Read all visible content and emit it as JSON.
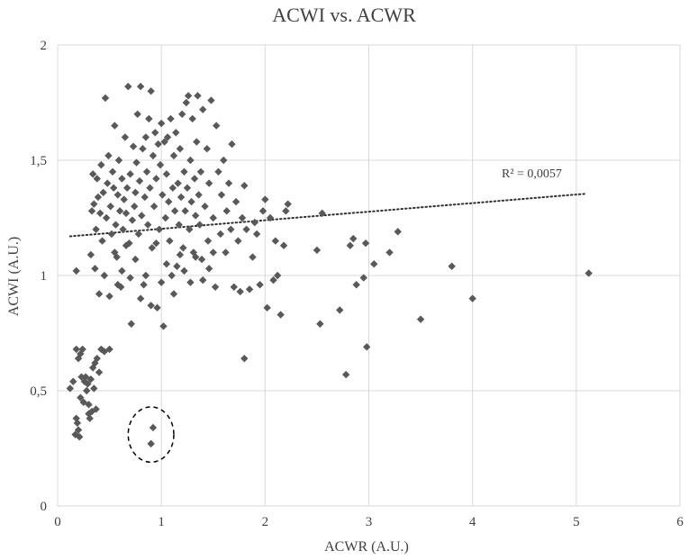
{
  "chart_data": {
    "type": "scatter",
    "title": "ACWI vs. ACWR",
    "xlabel": "ACWR (A.U.)",
    "ylabel": "ACWI (A.U.)",
    "xlim": [
      0,
      6
    ],
    "ylim": [
      0,
      2
    ],
    "x_ticks": [
      0,
      1,
      2,
      3,
      4,
      5,
      6
    ],
    "x_tick_labels": [
      "0",
      "1",
      "2",
      "3",
      "4",
      "5",
      "6"
    ],
    "y_ticks": [
      0,
      0.5,
      1,
      1.5,
      2
    ],
    "y_tick_labels": [
      "0",
      "0,5",
      "1",
      "1,5",
      "2"
    ],
    "grid": true,
    "legend": "none",
    "marker": "diamond",
    "marker_color": "#595959",
    "trendline": {
      "type": "linear",
      "x_range": [
        0.12,
        5.1
      ],
      "y_start": 1.17,
      "y_end": 1.355,
      "style": "dotted",
      "color": "#303030",
      "label": "R² = 0,0057"
    },
    "highlight_ellipse": {
      "center": [
        0.9,
        0.31
      ],
      "radius_x": 0.22,
      "radius_y": 0.12,
      "style": "dashed"
    },
    "points": [
      [
        0.12,
        0.51
      ],
      [
        0.15,
        0.54
      ],
      [
        0.17,
        0.31
      ],
      [
        0.18,
        0.68
      ],
      [
        0.19,
        0.36
      ],
      [
        0.2,
        0.64
      ],
      [
        0.21,
        0.3
      ],
      [
        0.22,
        0.66
      ],
      [
        0.24,
        0.68
      ],
      [
        0.25,
        0.45
      ],
      [
        0.26,
        0.54
      ],
      [
        0.27,
        0.56
      ],
      [
        0.28,
        0.5
      ],
      [
        0.29,
        0.53
      ],
      [
        0.3,
        0.44
      ],
      [
        0.31,
        0.38
      ],
      [
        0.32,
        0.55
      ],
      [
        0.33,
        0.41
      ],
      [
        0.34,
        0.6
      ],
      [
        0.35,
        0.51
      ],
      [
        0.36,
        0.62
      ],
      [
        0.37,
        0.42
      ],
      [
        0.38,
        0.64
      ],
      [
        0.4,
        0.58
      ],
      [
        0.42,
        0.68
      ],
      [
        0.45,
        0.67
      ],
      [
        0.5,
        0.68
      ],
      [
        0.18,
        0.38
      ],
      [
        0.2,
        0.33
      ],
      [
        0.22,
        0.47
      ],
      [
        0.23,
        0.56
      ],
      [
        0.3,
        0.4
      ],
      [
        0.18,
        1.02
      ],
      [
        0.32,
        1.09
      ],
      [
        0.33,
        1.28
      ],
      [
        0.34,
        1.44
      ],
      [
        0.35,
        1.31
      ],
      [
        0.36,
        1.03
      ],
      [
        0.37,
        1.2
      ],
      [
        0.38,
        1.42
      ],
      [
        0.39,
        1.34
      ],
      [
        0.4,
        0.92
      ],
      [
        0.41,
        1.27
      ],
      [
        0.42,
        1.48
      ],
      [
        0.43,
        1.15
      ],
      [
        0.44,
        1.36
      ],
      [
        0.45,
        1.0
      ],
      [
        0.46,
        1.77
      ],
      [
        0.47,
        1.25
      ],
      [
        0.48,
        1.4
      ],
      [
        0.49,
        1.52
      ],
      [
        0.5,
        0.91
      ],
      [
        0.51,
        1.3
      ],
      [
        0.52,
        1.18
      ],
      [
        0.53,
        1.45
      ],
      [
        0.54,
        1.38
      ],
      [
        0.55,
        1.65
      ],
      [
        0.56,
        1.22
      ],
      [
        0.57,
        1.08
      ],
      [
        0.58,
        1.35
      ],
      [
        0.59,
        1.5
      ],
      [
        0.6,
        1.28
      ],
      [
        0.61,
        0.95
      ],
      [
        0.62,
        1.42
      ],
      [
        0.63,
        1.2
      ],
      [
        0.64,
        1.33
      ],
      [
        0.65,
        1.6
      ],
      [
        0.66,
        1.27
      ],
      [
        0.67,
        1.38
      ],
      [
        0.68,
        1.82
      ],
      [
        0.69,
        1.14
      ],
      [
        0.7,
        1.44
      ],
      [
        0.71,
        0.79
      ],
      [
        0.72,
        1.24
      ],
      [
        0.73,
        1.56
      ],
      [
        0.74,
        1.3
      ],
      [
        0.75,
        1.36
      ],
      [
        0.76,
        1.49
      ],
      [
        0.77,
        1.7
      ],
      [
        0.78,
        1.18
      ],
      [
        0.79,
        1.41
      ],
      [
        0.8,
        1.82
      ],
      [
        0.81,
        1.26
      ],
      [
        0.82,
        1.55
      ],
      [
        0.83,
        0.96
      ],
      [
        0.84,
        1.34
      ],
      [
        0.85,
        1.6
      ],
      [
        0.86,
        1.45
      ],
      [
        0.87,
        1.22
      ],
      [
        0.88,
        1.68
      ],
      [
        0.89,
        1.38
      ],
      [
        0.9,
        1.8
      ],
      [
        0.91,
        1.12
      ],
      [
        0.92,
        1.52
      ],
      [
        0.93,
        1.3
      ],
      [
        0.94,
        1.62
      ],
      [
        0.95,
        1.42
      ],
      [
        0.96,
        0.86
      ],
      [
        0.97,
        1.57
      ],
      [
        0.98,
        1.2
      ],
      [
        0.99,
        1.48
      ],
      [
        1.0,
        1.66
      ],
      [
        1.01,
        1.35
      ],
      [
        1.02,
        0.78
      ],
      [
        1.03,
        1.58
      ],
      [
        1.04,
        1.25
      ],
      [
        1.05,
        1.44
      ],
      [
        1.06,
        1.6
      ],
      [
        1.07,
        1.32
      ],
      [
        1.08,
        1.15
      ],
      [
        1.09,
        1.68
      ],
      [
        1.1,
        1.0
      ],
      [
        1.11,
        1.38
      ],
      [
        1.12,
        1.52
      ],
      [
        1.13,
        1.28
      ],
      [
        1.14,
        1.62
      ],
      [
        1.15,
        1.04
      ],
      [
        1.16,
        1.4
      ],
      [
        1.17,
        1.22
      ],
      [
        1.18,
        1.55
      ],
      [
        1.19,
        1.34
      ],
      [
        1.2,
        1.7
      ],
      [
        1.21,
        1.12
      ],
      [
        1.22,
        1.45
      ],
      [
        1.23,
        1.28
      ],
      [
        1.24,
        1.75
      ],
      [
        1.25,
        1.38
      ],
      [
        1.26,
        1.78
      ],
      [
        1.27,
        1.2
      ],
      [
        1.28,
        1.5
      ],
      [
        1.29,
        1.32
      ],
      [
        1.3,
        1.68
      ],
      [
        1.31,
        1.1
      ],
      [
        1.32,
        1.42
      ],
      [
        1.33,
        1.26
      ],
      [
        1.34,
        1.58
      ],
      [
        1.35,
        1.78
      ],
      [
        1.36,
        1.35
      ],
      [
        1.37,
        1.22
      ],
      [
        1.38,
        1.45
      ],
      [
        1.39,
        1.07
      ],
      [
        1.4,
        1.72
      ],
      [
        1.42,
        1.3
      ],
      [
        1.44,
        1.55
      ],
      [
        1.45,
        1.15
      ],
      [
        1.46,
        1.4
      ],
      [
        1.48,
        1.76
      ],
      [
        1.5,
        1.25
      ],
      [
        1.52,
        0.95
      ],
      [
        1.53,
        1.65
      ],
      [
        1.55,
        1.45
      ],
      [
        1.57,
        1.18
      ],
      [
        1.58,
        1.35
      ],
      [
        1.6,
        1.5
      ],
      [
        1.62,
        1.1
      ],
      [
        1.63,
        1.28
      ],
      [
        1.65,
        1.4
      ],
      [
        1.67,
        1.2
      ],
      [
        1.68,
        1.57
      ],
      [
        1.7,
        0.95
      ],
      [
        1.72,
        1.32
      ],
      [
        1.74,
        1.15
      ],
      [
        1.76,
        0.93
      ],
      [
        1.78,
        1.25
      ],
      [
        1.8,
        1.39
      ],
      [
        1.82,
        1.2
      ],
      [
        1.85,
        0.94
      ],
      [
        1.88,
        1.08
      ],
      [
        1.9,
        1.23
      ],
      [
        1.92,
        1.18
      ],
      [
        1.95,
        0.96
      ],
      [
        1.98,
        1.28
      ],
      [
        2.0,
        1.33
      ],
      [
        2.02,
        0.86
      ],
      [
        2.05,
        1.25
      ],
      [
        2.08,
        0.98
      ],
      [
        2.1,
        1.15
      ],
      [
        2.12,
        1.0
      ],
      [
        2.15,
        0.83
      ],
      [
        2.18,
        1.13
      ],
      [
        2.2,
        1.28
      ],
      [
        2.22,
        1.31
      ],
      [
        0.55,
        1.1
      ],
      [
        0.58,
        0.96
      ],
      [
        0.62,
        1.02
      ],
      [
        0.66,
        1.13
      ],
      [
        0.7,
        0.99
      ],
      [
        0.75,
        1.07
      ],
      [
        0.8,
        0.9
      ],
      [
        0.85,
        1.0
      ],
      [
        0.9,
        0.87
      ],
      [
        0.95,
        1.14
      ],
      [
        1.0,
        0.97
      ],
      [
        1.05,
        1.05
      ],
      [
        1.12,
        0.92
      ],
      [
        1.18,
        1.09
      ],
      [
        1.22,
        1.02
      ],
      [
        1.28,
        0.97
      ],
      [
        1.33,
        1.08
      ],
      [
        1.4,
        0.98
      ],
      [
        1.46,
        1.03
      ],
      [
        1.5,
        1.1
      ],
      [
        1.8,
        0.64
      ],
      [
        2.5,
        1.11
      ],
      [
        2.53,
        0.79
      ],
      [
        2.55,
        1.27
      ],
      [
        2.72,
        0.85
      ],
      [
        2.78,
        0.57
      ],
      [
        2.82,
        1.13
      ],
      [
        2.85,
        1.16
      ],
      [
        2.88,
        0.96
      ],
      [
        2.95,
        0.99
      ],
      [
        2.97,
        1.14
      ],
      [
        2.98,
        0.69
      ],
      [
        3.05,
        1.05
      ],
      [
        3.2,
        1.1
      ],
      [
        3.28,
        1.19
      ],
      [
        3.5,
        0.81
      ],
      [
        3.8,
        1.04
      ],
      [
        4.0,
        0.9
      ],
      [
        5.12,
        1.01
      ],
      [
        0.92,
        0.34
      ],
      [
        0.9,
        0.27
      ]
    ]
  }
}
